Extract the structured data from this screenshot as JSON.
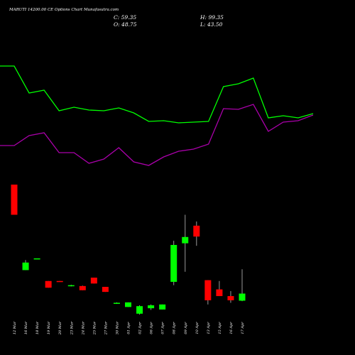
{
  "header": {
    "title": "MARUTI 14200.00 CE Options Chart Munafasutra.com",
    "close_label": "C: 59.35",
    "high_label": "H: 99.35",
    "open_label": "O: 48.75",
    "low_label": "L: 43.50"
  },
  "colors": {
    "background": "#000000",
    "up": "#00ff00",
    "down": "#ff0000",
    "wick": "#999999",
    "upper_line": "#00ff00",
    "lower_line": "#aa00aa",
    "text": "#ffffff"
  },
  "chart_data": {
    "type": "candlestick",
    "title": "MARUTI 14200.00 CE Options Chart Munafasutra.com",
    "x": [
      "12 Mar",
      "16 Mar",
      "18 Mar",
      "19 Mar",
      "20 Mar",
      "23 Mar",
      "24 Mar",
      "25 Mar",
      "27 Mar",
      "30 Mar",
      "01 Apr",
      "02 Apr",
      "06 Apr",
      "07 Apr",
      "08 Apr",
      "09 Apr",
      "10 Apr",
      "13 Apr",
      "15 Apr",
      "16 Apr",
      "17 Apr"
    ],
    "candles": [
      {
        "open": 194.0,
        "high": 194.0,
        "low": 158.0,
        "close": 158.0
      },
      {
        "open": 92.0,
        "high": 104.0,
        "low": 92.0,
        "close": 101.0
      },
      {
        "open": 106.0,
        "high": 106.0,
        "low": 106.0,
        "close": 106.0
      },
      {
        "open": 79.0,
        "high": 79.0,
        "low": 71.0,
        "close": 71.0
      },
      {
        "open": 79.0,
        "high": 79.0,
        "low": 78.0,
        "close": 78.0
      },
      {
        "open": 73.0,
        "high": 74.5,
        "low": 72.5,
        "close": 74.0
      },
      {
        "open": 73.0,
        "high": 73.5,
        "low": 68.0,
        "close": 68.0
      },
      {
        "open": 83.0,
        "high": 83.0,
        "low": 76.0,
        "close": 76.0
      },
      {
        "open": 72.0,
        "high": 72.0,
        "low": 66.0,
        "close": 66.0
      },
      {
        "open": 52.5,
        "high": 53.5,
        "low": 52.5,
        "close": 53.0
      },
      {
        "open": 48.0,
        "high": 53.5,
        "low": 48.0,
        "close": 53.5
      },
      {
        "open": 40.0,
        "high": 50.0,
        "low": 39.0,
        "close": 49.0
      },
      {
        "open": 46.5,
        "high": 51.0,
        "low": 44.5,
        "close": 50.0
      },
      {
        "open": 45.0,
        "high": 51.0,
        "low": 45.0,
        "close": 51.0
      },
      {
        "open": 78.0,
        "high": 127.0,
        "low": 74.0,
        "close": 122.0
      },
      {
        "open": 124.0,
        "high": 158.0,
        "low": 90.0,
        "close": 131.5
      },
      {
        "open": 145.0,
        "high": 150.0,
        "low": 121.0,
        "close": 132.0
      },
      {
        "open": 80.0,
        "high": 80.0,
        "low": 51.0,
        "close": 56.0
      },
      {
        "open": 69.0,
        "high": 79.0,
        "low": 61.0,
        "close": 61.0
      },
      {
        "open": 61.0,
        "high": 67.0,
        "low": 53.0,
        "close": 56.0
      },
      {
        "open": 55.5,
        "high": 93.0,
        "low": 55.0,
        "close": 64.0
      }
    ],
    "upper_line": [
      93,
      93,
      131,
      127,
      156,
      151,
      155,
      156,
      152,
      159,
      171,
      170,
      173,
      172,
      171,
      122,
      118,
      110,
      166,
      163,
      166,
      160
    ],
    "lower_line": [
      205,
      205,
      191,
      187,
      215,
      215,
      230,
      224,
      208,
      228,
      233,
      221,
      213,
      210,
      203,
      153,
      154,
      147,
      185,
      172,
      170,
      162
    ],
    "lines_note_ignored": true
  }
}
